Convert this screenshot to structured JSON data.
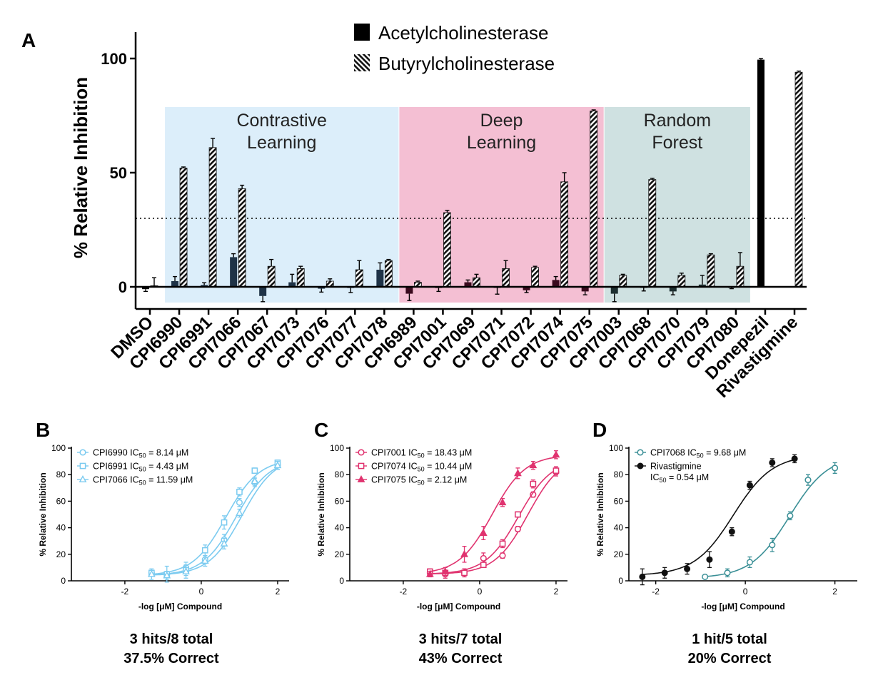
{
  "colors": {
    "ache": "#000000",
    "ache_panel": "#1f2d3a",
    "contrastive_bg": "#dceefa",
    "deep_bg": "#f4bfd3",
    "forest_bg": "#cfe1e1",
    "light_blue": "#7ccbf0",
    "pink": "#e0336f",
    "teal": "#3a8f96",
    "black": "#111111"
  },
  "chart_data": [
    {
      "panel": "A",
      "type": "bar",
      "ylabel": "% Relative Inhibition",
      "ylim": [
        -10,
        105
      ],
      "yticks": [
        0,
        50,
        100
      ],
      "threshold_line": 30,
      "legend": [
        "Acetylcholinesterase",
        "Butyrylcholinesterase"
      ],
      "regions": [
        {
          "label_lines": [
            "Contrastive",
            "Learning"
          ],
          "from": 1,
          "to": 8
        },
        {
          "label_lines": [
            "Deep",
            "Learning"
          ],
          "from": 9,
          "to": 15
        },
        {
          "label_lines": [
            "Random",
            "Forest"
          ],
          "from": 16,
          "to": 20
        }
      ],
      "categories": [
        "DMSO",
        "CPI6990",
        "CPI6991",
        "CPI7066",
        "CPI7067",
        "CPI7073",
        "CPI7076",
        "CPI7077",
        "CPI7078",
        "CPI6989",
        "CPI7001",
        "CPI7069",
        "CPI7071",
        "CPI7072",
        "CPI7074",
        "CPI7075",
        "CPI7003",
        "CPI7068",
        "CPI7070",
        "CPI7079",
        "CPI7080",
        "Donepezil",
        "Rivastigmine"
      ],
      "series": [
        {
          "name": "Acetylcholinesterase",
          "values": [
            -1,
            2.5,
            0.8,
            13,
            -4,
            2,
            -0.8,
            -0.5,
            7.5,
            -3,
            -0.5,
            2,
            -0.2,
            -1.5,
            3,
            -2,
            -3,
            -0.3,
            -2,
            1,
            -0.3,
            99.5,
            null
          ],
          "errors": [
            1,
            2,
            1,
            1.5,
            2.5,
            3.5,
            1.5,
            2,
            3,
            3,
            1.5,
            1,
            3,
            1,
            1.5,
            1.5,
            3.5,
            1.5,
            1.5,
            4,
            0.5,
            0.5,
            null
          ]
        },
        {
          "name": "Butyrylcholinesterase",
          "values": [
            0.5,
            52,
            61,
            43,
            9,
            8,
            2.5,
            7.5,
            11.5,
            2,
            32.5,
            4,
            8,
            8.5,
            46,
            77,
            5,
            47,
            5,
            14,
            9,
            null,
            94
          ],
          "errors": [
            3.5,
            0.5,
            4,
            1.5,
            3,
            1,
            1,
            4,
            0.5,
            0.5,
            1,
            1.5,
            3.5,
            0.5,
            4,
            0.5,
            0.5,
            0.5,
            1,
            0.5,
            6,
            null,
            0.5
          ]
        }
      ]
    },
    {
      "panel": "B",
      "type": "scatter",
      "xlabel": "-log [μM] Compound",
      "ylabel": "% Relative Inhibition",
      "xlim": [
        -3.4,
        2.3
      ],
      "ylim": [
        0,
        100
      ],
      "xticks": [
        -2,
        0,
        2
      ],
      "yticks": [
        0,
        20,
        40,
        60,
        80,
        100
      ],
      "legend_prefix": [
        "CPI6990 IC",
        "CPI6991 IC",
        "CPI7066 IC"
      ],
      "legend_value": [
        " = 8.14 μM",
        " = 4.43 μM",
        " = 11.59 μM"
      ],
      "ic50_sub": "50",
      "series": [
        {
          "name": "CPI6990",
          "marker": "circle",
          "ic50": 8.14,
          "bottom": 4,
          "top": 92,
          "hill": 1,
          "x": [
            -1.3,
            -0.9,
            -0.4,
            0.1,
            0.6,
            1.0,
            1.4,
            2.0
          ],
          "y": [
            6,
            5,
            10,
            16,
            31,
            59,
            74,
            87
          ],
          "err": [
            2,
            2,
            4,
            3,
            4,
            3,
            3,
            3
          ]
        },
        {
          "name": "CPI6991",
          "marker": "square",
          "ic50": 4.43,
          "bottom": 4,
          "top": 92,
          "hill": 1,
          "x": [
            -1.3,
            -0.9,
            -0.4,
            0.1,
            0.6,
            1.0,
            1.4,
            2.0
          ],
          "y": [
            6,
            5,
            8,
            23,
            44,
            67,
            83,
            89
          ],
          "err": [
            2,
            6,
            4,
            4,
            5,
            3,
            2,
            2
          ]
        },
        {
          "name": "CPI7066",
          "marker": "triangle",
          "ic50": 11.59,
          "bottom": 4,
          "top": 94,
          "hill": 1,
          "x": [
            -1.3,
            -0.9,
            -0.4,
            0.1,
            0.6,
            1.0,
            1.4,
            2.0
          ],
          "y": [
            5,
            4,
            7,
            15,
            28,
            51,
            75,
            87
          ],
          "err": [
            4,
            3,
            5,
            4,
            4,
            3,
            3,
            3
          ]
        }
      ],
      "summary_lines": [
        "3 hits/8 total",
        "37.5% Correct"
      ]
    },
    {
      "panel": "C",
      "type": "scatter",
      "xlabel": "-log [μM] Compound",
      "ylabel": "% Relative Inhibition",
      "xlim": [
        -3.4,
        2.3
      ],
      "ylim": [
        0,
        100
      ],
      "xticks": [
        -2,
        0,
        2
      ],
      "yticks": [
        0,
        20,
        40,
        60,
        80,
        100
      ],
      "legend_prefix": [
        "CPI7001 IC",
        "CPI7074 IC",
        "CPI7075 IC"
      ],
      "legend_value": [
        " = 18.43 μM",
        " = 10.44 μM",
        " = 2.12 μM"
      ],
      "ic50_sub": "50",
      "series": [
        {
          "name": "CPI7001",
          "marker": "circle",
          "ic50": 18.43,
          "bottom": 5,
          "top": 95,
          "hill": 1,
          "x": [
            -1.3,
            -0.9,
            -0.4,
            0.1,
            0.6,
            1.0,
            1.4,
            2.0
          ],
          "y": [
            6,
            5,
            6,
            17,
            19,
            39,
            65,
            82
          ],
          "err": [
            2,
            3,
            3,
            4,
            2,
            2,
            2,
            3
          ]
        },
        {
          "name": "CPI7074",
          "marker": "square",
          "ic50": 10.44,
          "bottom": 5,
          "top": 92,
          "hill": 1,
          "x": [
            -1.3,
            -0.9,
            -0.4,
            0.1,
            0.6,
            1.0,
            1.4,
            2.0
          ],
          "y": [
            7,
            6,
            6,
            12,
            28,
            50,
            73,
            83
          ],
          "err": [
            2,
            2,
            3,
            2,
            3,
            2,
            3,
            3
          ]
        },
        {
          "name": "CPI7075",
          "marker": "triangle",
          "ic50": 2.12,
          "bottom": 5,
          "top": 95,
          "hill": 1,
          "x": [
            -1.3,
            -0.9,
            -0.4,
            0.1,
            0.6,
            1.0,
            1.4,
            2.0
          ],
          "y": [
            5,
            7,
            20,
            36,
            59,
            81,
            87,
            95
          ],
          "err": [
            2,
            3,
            6,
            5,
            3,
            4,
            3,
            3
          ]
        }
      ],
      "summary_lines": [
        "3 hits/7 total",
        "43% Correct"
      ]
    },
    {
      "panel": "D",
      "type": "scatter",
      "xlabel": "-log [μM] Compound",
      "ylabel": "% Relative Inhibition",
      "xlim": [
        -2.6,
        2.5
      ],
      "ylim": [
        0,
        100
      ],
      "xticks": [
        -2,
        0,
        2
      ],
      "yticks": [
        0,
        20,
        40,
        60,
        80,
        100
      ],
      "legend_prefix": [
        "CPI7068 IC",
        "Rivastigmine"
      ],
      "legend_value": [
        " = 9.68 μM",
        ""
      ],
      "legend_line2": [
        "",
        "IC"
      ],
      "legend_line2_value": [
        "",
        " = 0.54 μM"
      ],
      "ic50_sub": "50",
      "series": [
        {
          "name": "CPI7068",
          "marker": "circle",
          "color_key": "teal",
          "ic50": 9.68,
          "bottom": 2,
          "top": 95,
          "hill": 1,
          "x": [
            -0.9,
            -0.4,
            0.1,
            0.6,
            1.0,
            1.4,
            2.0
          ],
          "y": [
            3,
            6,
            14,
            27,
            49,
            76,
            85
          ],
          "err": [
            1,
            3,
            4,
            5,
            3,
            4,
            4
          ]
        },
        {
          "name": "Rivastigmine",
          "marker": "filled-circle",
          "color_key": "black",
          "ic50": 0.54,
          "bottom": 4,
          "top": 95,
          "hill": 1,
          "x": [
            -2.3,
            -1.8,
            -1.3,
            -0.8,
            -0.3,
            0.1,
            0.6,
            1.1
          ],
          "y": [
            3,
            6,
            9,
            16,
            37,
            72,
            89,
            92
          ],
          "err": [
            6,
            4,
            4,
            6,
            3,
            3,
            3,
            3
          ]
        }
      ],
      "summary_lines": [
        "1 hit/5 total",
        "20% Correct"
      ]
    }
  ]
}
